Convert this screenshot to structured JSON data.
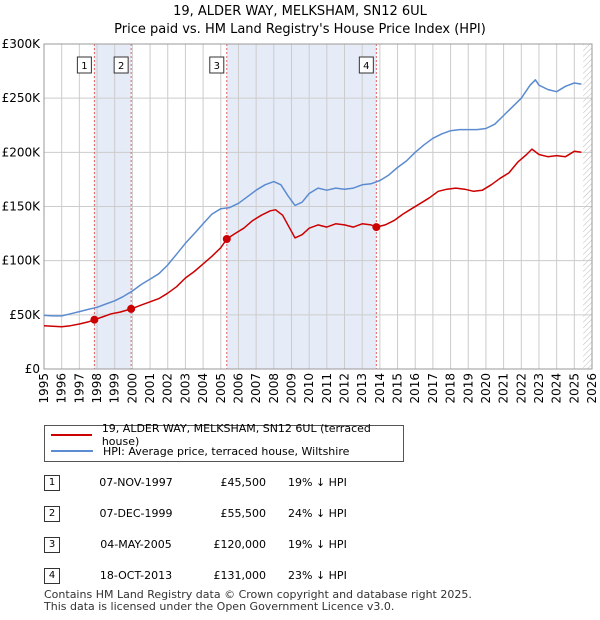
{
  "title_line1": "19, ALDER WAY, MELKSHAM, SN12 6UL",
  "title_line2": "Price paid vs. HM Land Registry's House Price Index (HPI)",
  "legend": {
    "property_label": "19, ALDER WAY, MELKSHAM, SN12 6UL (terraced house)",
    "hpi_label": "HPI: Average price, terraced house, Wiltshire"
  },
  "colors": {
    "property": "#cc0000",
    "hpi": "#5b8bd0",
    "shade": "#e6ecf7",
    "grid": "#cccccc",
    "marker_line": "#e06060"
  },
  "sales": [
    {
      "num": "1",
      "date": "07-NOV-1997",
      "price": "£45,500",
      "hpi": "19% ↓ HPI"
    },
    {
      "num": "2",
      "date": "07-DEC-1999",
      "price": "£55,500",
      "hpi": "24% ↓ HPI"
    },
    {
      "num": "3",
      "date": "04-MAY-2005",
      "price": "£120,000",
      "hpi": "19% ↓ HPI"
    },
    {
      "num": "4",
      "date": "18-OCT-2013",
      "price": "£131,000",
      "hpi": "23% ↓ HPI"
    }
  ],
  "footer": {
    "line1": "Contains HM Land Registry data © Crown copyright and database right 2025.",
    "line2": "This data is licensed under the Open Government Licence v3.0."
  },
  "chart_data": {
    "type": "line",
    "title": "19, ALDER WAY, MELKSHAM, SN12 6UL — Price paid vs. HM Land Registry's House Price Index (HPI)",
    "xlabel": "",
    "ylabel": "",
    "xlim": [
      1995,
      2026
    ],
    "ylim": [
      0,
      300000
    ],
    "x_ticks": [
      1995,
      1996,
      1997,
      1998,
      1999,
      2000,
      2001,
      2002,
      2003,
      2004,
      2005,
      2006,
      2007,
      2008,
      2009,
      2010,
      2011,
      2012,
      2013,
      2014,
      2015,
      2016,
      2017,
      2018,
      2019,
      2020,
      2021,
      2022,
      2023,
      2024,
      2025,
      2026
    ],
    "y_ticks": [
      0,
      50000,
      100000,
      150000,
      200000,
      250000,
      300000
    ],
    "y_tick_labels": [
      "£0",
      "£50K",
      "£100K",
      "£150K",
      "£200K",
      "£250K",
      "£300K"
    ],
    "grid": true,
    "legend_position": "below",
    "series": [
      {
        "name": "19, ALDER WAY, MELKSHAM, SN12 6UL (terraced house)",
        "color": "#cc0000",
        "points": [
          [
            1995.0,
            40000
          ],
          [
            1995.5,
            39500
          ],
          [
            1996.0,
            39000
          ],
          [
            1996.5,
            40000
          ],
          [
            1997.0,
            41500
          ],
          [
            1997.5,
            43500
          ],
          [
            1997.85,
            45500
          ],
          [
            1998.3,
            48000
          ],
          [
            1998.8,
            51000
          ],
          [
            1999.3,
            52500
          ],
          [
            1999.93,
            55500
          ],
          [
            2000.5,
            59000
          ],
          [
            2001.0,
            62000
          ],
          [
            2001.5,
            65000
          ],
          [
            2002.0,
            70000
          ],
          [
            2002.5,
            76000
          ],
          [
            2003.0,
            84000
          ],
          [
            2003.5,
            90000
          ],
          [
            2004.0,
            97000
          ],
          [
            2004.5,
            104000
          ],
          [
            2005.0,
            112000
          ],
          [
            2005.34,
            120000
          ],
          [
            2005.8,
            125000
          ],
          [
            2006.3,
            130000
          ],
          [
            2006.8,
            137000
          ],
          [
            2007.3,
            142000
          ],
          [
            2007.8,
            146000
          ],
          [
            2008.1,
            147000
          ],
          [
            2008.5,
            142000
          ],
          [
            2008.9,
            130000
          ],
          [
            2009.2,
            121000
          ],
          [
            2009.6,
            124000
          ],
          [
            2010.0,
            130000
          ],
          [
            2010.5,
            133000
          ],
          [
            2011.0,
            131000
          ],
          [
            2011.5,
            134000
          ],
          [
            2012.0,
            133000
          ],
          [
            2012.5,
            131000
          ],
          [
            2013.0,
            134000
          ],
          [
            2013.5,
            133000
          ],
          [
            2013.8,
            131000
          ],
          [
            2014.3,
            133000
          ],
          [
            2014.8,
            137000
          ],
          [
            2015.3,
            143000
          ],
          [
            2015.8,
            148000
          ],
          [
            2016.3,
            153000
          ],
          [
            2016.8,
            158000
          ],
          [
            2017.3,
            164000
          ],
          [
            2017.8,
            166000
          ],
          [
            2018.3,
            167000
          ],
          [
            2018.8,
            166000
          ],
          [
            2019.3,
            164000
          ],
          [
            2019.8,
            165000
          ],
          [
            2020.3,
            170000
          ],
          [
            2020.8,
            176000
          ],
          [
            2021.3,
            181000
          ],
          [
            2021.8,
            191000
          ],
          [
            2022.3,
            198000
          ],
          [
            2022.6,
            203000
          ],
          [
            2023.0,
            198000
          ],
          [
            2023.5,
            196000
          ],
          [
            2024.0,
            197000
          ],
          [
            2024.5,
            196000
          ],
          [
            2025.0,
            201000
          ],
          [
            2025.4,
            200000
          ]
        ]
      },
      {
        "name": "HPI: Average price, terraced house, Wiltshire",
        "color": "#5b8bd0",
        "points": [
          [
            1995.0,
            49500
          ],
          [
            1995.5,
            49000
          ],
          [
            1996.0,
            49000
          ],
          [
            1996.5,
            51000
          ],
          [
            1997.0,
            53000
          ],
          [
            1997.5,
            55000
          ],
          [
            1998.0,
            57000
          ],
          [
            1998.5,
            60000
          ],
          [
            1999.0,
            63000
          ],
          [
            1999.5,
            67000
          ],
          [
            2000.0,
            72000
          ],
          [
            2000.5,
            78000
          ],
          [
            2001.0,
            83000
          ],
          [
            2001.5,
            88000
          ],
          [
            2002.0,
            96000
          ],
          [
            2002.5,
            106000
          ],
          [
            2003.0,
            116000
          ],
          [
            2003.5,
            125000
          ],
          [
            2004.0,
            134000
          ],
          [
            2004.5,
            143000
          ],
          [
            2005.0,
            148000
          ],
          [
            2005.5,
            149000
          ],
          [
            2006.0,
            153000
          ],
          [
            2006.5,
            159000
          ],
          [
            2007.0,
            165000
          ],
          [
            2007.5,
            170000
          ],
          [
            2008.0,
            173000
          ],
          [
            2008.4,
            170000
          ],
          [
            2008.8,
            160000
          ],
          [
            2009.2,
            151000
          ],
          [
            2009.6,
            154000
          ],
          [
            2010.0,
            162000
          ],
          [
            2010.5,
            167000
          ],
          [
            2011.0,
            165000
          ],
          [
            2011.5,
            167000
          ],
          [
            2012.0,
            166000
          ],
          [
            2012.5,
            167000
          ],
          [
            2013.0,
            170000
          ],
          [
            2013.5,
            171000
          ],
          [
            2014.0,
            174000
          ],
          [
            2014.5,
            179000
          ],
          [
            2015.0,
            186000
          ],
          [
            2015.5,
            192000
          ],
          [
            2016.0,
            200000
          ],
          [
            2016.5,
            207000
          ],
          [
            2017.0,
            213000
          ],
          [
            2017.5,
            217000
          ],
          [
            2018.0,
            220000
          ],
          [
            2018.5,
            221000
          ],
          [
            2019.0,
            221000
          ],
          [
            2019.5,
            221000
          ],
          [
            2020.0,
            222000
          ],
          [
            2020.5,
            226000
          ],
          [
            2021.0,
            234000
          ],
          [
            2021.5,
            242000
          ],
          [
            2022.0,
            250000
          ],
          [
            2022.5,
            262000
          ],
          [
            2022.8,
            267000
          ],
          [
            2023.0,
            262000
          ],
          [
            2023.5,
            258000
          ],
          [
            2024.0,
            256000
          ],
          [
            2024.5,
            261000
          ],
          [
            2025.0,
            264000
          ],
          [
            2025.4,
            263000
          ]
        ]
      }
    ],
    "sale_markers": [
      {
        "label": "1",
        "x": 1997.85,
        "y": 45500
      },
      {
        "label": "2",
        "x": 1999.93,
        "y": 55500
      },
      {
        "label": "3",
        "x": 2005.34,
        "y": 120000
      },
      {
        "label": "4",
        "x": 2013.8,
        "y": 131000
      }
    ],
    "shaded_ranges": [
      [
        1997.85,
        1999.93
      ],
      [
        2005.34,
        2013.8
      ]
    ],
    "hatched_range": [
      2025.5,
      2026
    ]
  }
}
